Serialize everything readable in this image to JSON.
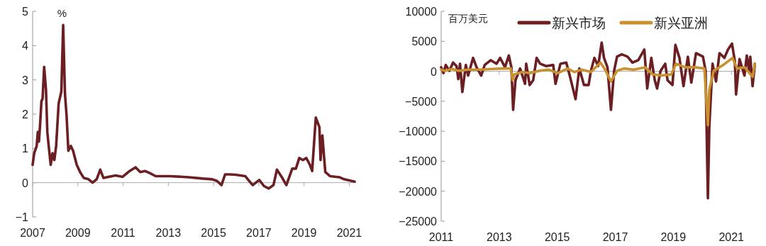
{
  "chart_data": [
    {
      "type": "line",
      "ylabel": "%",
      "xlim": [
        2007,
        2021.3
      ],
      "xticks": [
        2007,
        2009,
        2011,
        2013,
        2015,
        2017,
        2019,
        2021
      ],
      "ylim": [
        -1,
        5
      ],
      "yticks": [
        -1,
        0,
        1,
        2,
        3,
        4,
        5
      ],
      "series": [
        {
          "color": "#6b1f23",
          "x": [
            2007.0,
            2007.07,
            2007.18,
            2007.23,
            2007.28,
            2007.33,
            2007.39,
            2007.44,
            2007.51,
            2007.59,
            2007.65,
            2007.7,
            2007.8,
            2007.88,
            2007.96,
            2008.04,
            2008.15,
            2008.27,
            2008.35,
            2008.43,
            2008.5,
            2008.58,
            2008.69,
            2008.79,
            2008.95,
            2009.1,
            2009.26,
            2009.47,
            2009.65,
            2009.83,
            2009.99,
            2010.13,
            2010.35,
            2010.67,
            2010.98,
            2011.29,
            2011.55,
            2011.76,
            2011.97,
            2012.18,
            2012.44,
            2013.06,
            2013.9,
            2014.52,
            2014.94,
            2015.15,
            2015.35,
            2015.51,
            2015.72,
            2015.98,
            2016.4,
            2016.55,
            2016.73,
            2017.02,
            2017.23,
            2017.44,
            2017.65,
            2017.8,
            2018.01,
            2018.22,
            2018.48,
            2018.64,
            2018.79,
            2018.95,
            2019.1,
            2019.26,
            2019.36,
            2019.52,
            2019.68,
            2019.73,
            2019.81,
            2019.94,
            2020.15,
            2020.56,
            2020.77,
            2021.24
          ],
          "values": [
            0.52,
            0.86,
            1.07,
            1.48,
            1.2,
            1.69,
            2.38,
            2.45,
            3.38,
            2.72,
            1.48,
            1.14,
            0.52,
            0.86,
            0.66,
            1.07,
            2.31,
            2.66,
            4.6,
            2.59,
            1.97,
            0.93,
            1.07,
            0.93,
            0.52,
            0.31,
            0.14,
            0.1,
            0.0,
            0.1,
            0.38,
            0.14,
            0.17,
            0.21,
            0.17,
            0.34,
            0.45,
            0.31,
            0.34,
            0.28,
            0.19,
            0.19,
            0.16,
            0.12,
            0.1,
            0.05,
            -0.07,
            0.24,
            0.24,
            0.23,
            0.19,
            0.07,
            -0.07,
            0.08,
            -0.1,
            -0.17,
            -0.07,
            0.38,
            0.17,
            -0.07,
            0.41,
            0.41,
            0.72,
            0.66,
            0.72,
            0.52,
            0.34,
            1.9,
            1.62,
            0.66,
            1.38,
            0.31,
            0.19,
            0.16,
            0.1,
            0.03
          ]
        }
      ]
    },
    {
      "type": "line",
      "ylabel": "百万美元",
      "legend": "top",
      "xlim": [
        2011,
        2021.85
      ],
      "xticks": [
        2011,
        2013,
        2015,
        2017,
        2019,
        2021
      ],
      "ylim": [
        -25000,
        10000
      ],
      "yticks": [
        -25000,
        -20000,
        -15000,
        -10000,
        -5000,
        0,
        5000,
        10000
      ],
      "series": [
        {
          "name": "新兴市场",
          "color": "#6b1f23",
          "x": [
            2011.0,
            2011.08,
            2011.16,
            2011.28,
            2011.41,
            2011.53,
            2011.59,
            2011.65,
            2011.73,
            2011.85,
            2011.93,
            2012.1,
            2012.22,
            2012.38,
            2012.5,
            2012.71,
            2012.91,
            2013.03,
            2013.2,
            2013.33,
            2013.42,
            2013.48,
            2013.56,
            2013.72,
            2013.89,
            2013.93,
            2014.05,
            2014.17,
            2014.29,
            2014.41,
            2014.62,
            2014.86,
            2014.94,
            2015.11,
            2015.31,
            2015.43,
            2015.63,
            2015.76,
            2015.92,
            2016.08,
            2016.16,
            2016.28,
            2016.41,
            2016.53,
            2016.61,
            2016.73,
            2016.85,
            2016.96,
            2017.06,
            2017.22,
            2017.42,
            2017.59,
            2017.79,
            2018.0,
            2018.1,
            2018.24,
            2018.36,
            2018.44,
            2018.56,
            2018.72,
            2018.8,
            2018.97,
            2019.07,
            2019.21,
            2019.35,
            2019.5,
            2019.62,
            2019.78,
            2020.02,
            2020.11,
            2020.19,
            2020.24,
            2020.35,
            2020.47,
            2020.59,
            2020.76,
            2020.88,
            2021.02,
            2021.12,
            2021.16,
            2021.28,
            2021.45,
            2021.53,
            2021.61,
            2021.65,
            2021.73,
            2021.81
          ],
          "values": [
            670,
            -300,
            1060,
            80,
            1460,
            870,
            -1300,
            1260,
            -3460,
            1060,
            -710,
            2240,
            670,
            -710,
            1060,
            1850,
            1260,
            2240,
            670,
            2640,
            670,
            -6420,
            -1500,
            470,
            -2090,
            1260,
            -2280,
            -1500,
            2240,
            1260,
            870,
            1060,
            -2090,
            1260,
            1460,
            -710,
            -4650,
            470,
            -2280,
            -2280,
            80,
            2240,
            870,
            4800,
            2240,
            670,
            -6420,
            80,
            2440,
            2830,
            2440,
            1460,
            1850,
            3620,
            -2870,
            2240,
            -1500,
            -2870,
            80,
            1260,
            -1500,
            -2280,
            4410,
            2240,
            -2480,
            2440,
            -1890,
            3030,
            2440,
            80,
            -21180,
            -9170,
            1260,
            -1690,
            3030,
            2240,
            3620,
            4610,
            1650,
            -3860,
            2050,
            -710,
            2640,
            80,
            2440,
            -2480,
            1260
          ]
        },
        {
          "name": "新兴亚洲",
          "color": "#c8902f",
          "x": [
            2011.0,
            2011.12,
            2011.37,
            2011.61,
            2011.93,
            2012.34,
            2012.75,
            2013.15,
            2013.4,
            2013.46,
            2013.52,
            2013.8,
            2014.05,
            2014.37,
            2014.7,
            2015.02,
            2015.35,
            2015.59,
            2015.84,
            2016.16,
            2016.49,
            2016.65,
            2016.85,
            2017.06,
            2017.3,
            2017.63,
            2018.03,
            2018.28,
            2018.6,
            2018.93,
            2019.09,
            2019.41,
            2019.74,
            2020.07,
            2020.19,
            2020.24,
            2020.39,
            2020.72,
            2021.04,
            2021.2,
            2021.45,
            2021.73,
            2021.81
          ],
          "values": [
            280,
            80,
            390,
            80,
            280,
            280,
            390,
            470,
            470,
            -1500,
            -510,
            -120,
            -310,
            80,
            280,
            -310,
            470,
            -120,
            280,
            -120,
            1460,
            280,
            -1690,
            80,
            470,
            280,
            670,
            -510,
            -710,
            -510,
            1260,
            670,
            670,
            470,
            -8980,
            -3070,
            80,
            1060,
            2240,
            470,
            670,
            -910,
            1260
          ]
        }
      ]
    }
  ]
}
